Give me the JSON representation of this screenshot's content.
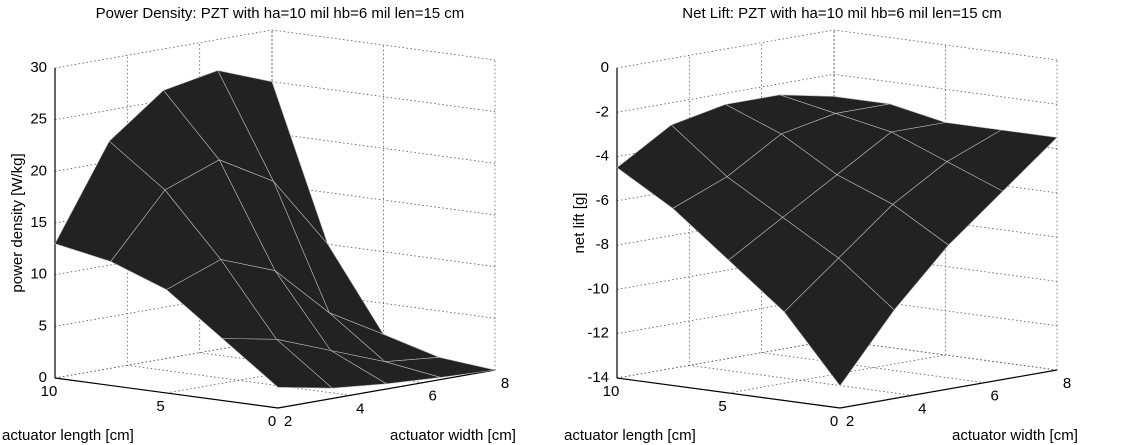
{
  "chart_data": [
    {
      "type": "surface",
      "title": "Power Density: PZT with ha=10 mil hb=6 mil len=15 cm",
      "xlabel": "actuator width [cm]",
      "ylabel": "actuator length [cm]",
      "zlabel": "power density [W/kg]",
      "x": [
        2,
        3.5,
        5,
        6.5,
        8
      ],
      "y": [
        10,
        7.5,
        5,
        2.5,
        0
      ],
      "z": [
        [
          13,
          22,
          26,
          27,
          25
        ],
        [
          12,
          18,
          20,
          17,
          10
        ],
        [
          10,
          12,
          10,
          5,
          2
        ],
        [
          6,
          5,
          3,
          1,
          0.5
        ],
        [
          2,
          1,
          0.5,
          0.2,
          0
        ]
      ],
      "xlim": [
        2,
        8
      ],
      "ylim": [
        0,
        10
      ],
      "zlim": [
        0,
        30
      ],
      "xticks": [
        2,
        4,
        6,
        8
      ],
      "yticks": [
        0,
        5,
        10
      ],
      "zticks": [
        0,
        5,
        10,
        15,
        20,
        25,
        30
      ],
      "grid": true,
      "color": "#222222"
    },
    {
      "type": "surface",
      "title": "Net Lift: PZT with ha=10 mil hb=6 mil len=15 cm",
      "xlabel": "actuator width [cm]",
      "ylabel": "actuator length [cm]",
      "zlabel": "net lift [g]",
      "x": [
        2,
        3.5,
        5,
        6.5,
        8
      ],
      "y": [
        10,
        7.5,
        5,
        2.5,
        0
      ],
      "z": [
        [
          -4.5,
          -3,
          -2.5,
          -2.5,
          -3
        ],
        [
          -6,
          -5,
          -3.5,
          -3,
          -3
        ],
        [
          -8,
          -6.5,
          -5,
          -3.5,
          -3.5
        ],
        [
          -10,
          -8,
          -6,
          -4.5,
          -3.5
        ],
        [
          -13,
          -10,
          -7.5,
          -5.5,
          -3.5
        ]
      ],
      "xlim": [
        2,
        8
      ],
      "ylim": [
        0,
        10
      ],
      "zlim": [
        -14,
        0
      ],
      "xticks": [
        2,
        4,
        6,
        8
      ],
      "yticks": [
        0,
        5,
        10
      ],
      "zticks": [
        -14,
        -12,
        -10,
        -8,
        -6,
        -4,
        -2,
        0
      ],
      "grid": true,
      "color": "#222222"
    }
  ]
}
